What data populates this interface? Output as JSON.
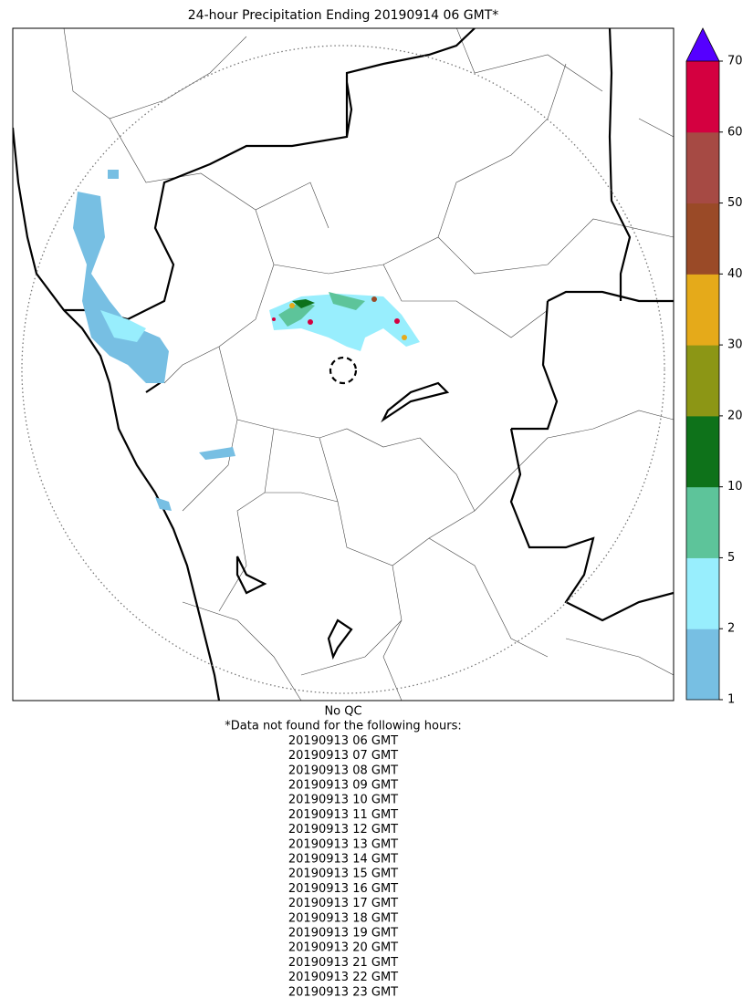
{
  "title": "24-hour Precipitation Ending 20190914 06 GMT*",
  "colorbar": {
    "ticks": [
      1,
      2,
      5,
      10,
      20,
      30,
      40,
      50,
      60,
      70
    ],
    "colors": [
      "#77bfe3",
      "#98eefd",
      "#5dc49a",
      "#0e721a",
      "#8c9615",
      "#e5aa1a",
      "#9a4a27",
      "#a64a44",
      "#d40040"
    ],
    "extend_color": "#5500ff"
  },
  "footer": {
    "qc": "No QC",
    "missing_heading": "*Data not found for the following hours:",
    "missing_hours": [
      "20190913 06 GMT",
      "20190913 07 GMT",
      "20190913 08 GMT",
      "20190913 09 GMT",
      "20190913 10 GMT",
      "20190913 11 GMT",
      "20190913 12 GMT",
      "20190913 13 GMT",
      "20190913 14 GMT",
      "20190913 15 GMT",
      "20190913 16 GMT",
      "20190913 17 GMT",
      "20190913 18 GMT",
      "20190913 19 GMT",
      "20190913 20 GMT",
      "20190913 21 GMT",
      "20190913 22 GMT",
      "20190913 23 GMT"
    ]
  }
}
